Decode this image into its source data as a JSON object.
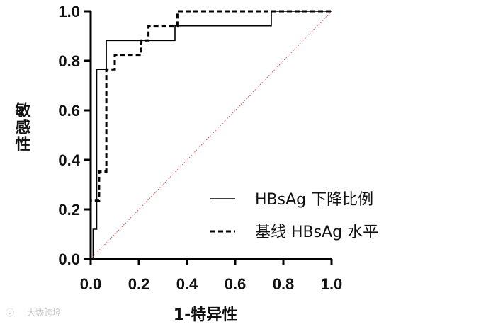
{
  "chart_data": {
    "type": "line",
    "subtype": "roc-step",
    "xlabel": "1-特异性",
    "ylabel": "敏感性",
    "xlim": [
      0,
      1
    ],
    "ylim": [
      0,
      1
    ],
    "x_ticks": [
      "0.0",
      "0.2",
      "0.4",
      "0.6",
      "0.8",
      "1.0"
    ],
    "y_ticks": [
      "0.0",
      "0.2",
      "0.4",
      "0.6",
      "0.8",
      "1.0"
    ],
    "grid": false,
    "legend_position": "bottom-right",
    "series": [
      {
        "name": "HBsAg 下降比例",
        "style": "solid",
        "color": "#000000",
        "points": [
          [
            0,
            0
          ],
          [
            0.01,
            0
          ],
          [
            0.01,
            0.12
          ],
          [
            0.025,
            0.12
          ],
          [
            0.025,
            0.765
          ],
          [
            0.065,
            0.765
          ],
          [
            0.065,
            0.882
          ],
          [
            0.35,
            0.882
          ],
          [
            0.35,
            0.941
          ],
          [
            0.75,
            0.941
          ],
          [
            0.75,
            1.0
          ],
          [
            1.0,
            1.0
          ]
        ]
      },
      {
        "name": "基线 HBsAg 水平",
        "style": "dashed",
        "color": "#000000",
        "points": [
          [
            0,
            0
          ],
          [
            0,
            0.235
          ],
          [
            0.035,
            0.235
          ],
          [
            0.035,
            0.353
          ],
          [
            0.065,
            0.353
          ],
          [
            0.065,
            0.765
          ],
          [
            0.1,
            0.765
          ],
          [
            0.1,
            0.824
          ],
          [
            0.21,
            0.824
          ],
          [
            0.21,
            0.882
          ],
          [
            0.24,
            0.882
          ],
          [
            0.24,
            0.941
          ],
          [
            0.36,
            0.941
          ],
          [
            0.36,
            1.0
          ],
          [
            1.0,
            1.0
          ]
        ]
      },
      {
        "name": "",
        "style": "dotted",
        "color": "#e05050",
        "points": [
          [
            0,
            0
          ],
          [
            1,
            1
          ]
        ]
      }
    ]
  },
  "watermark": "大数跨境"
}
